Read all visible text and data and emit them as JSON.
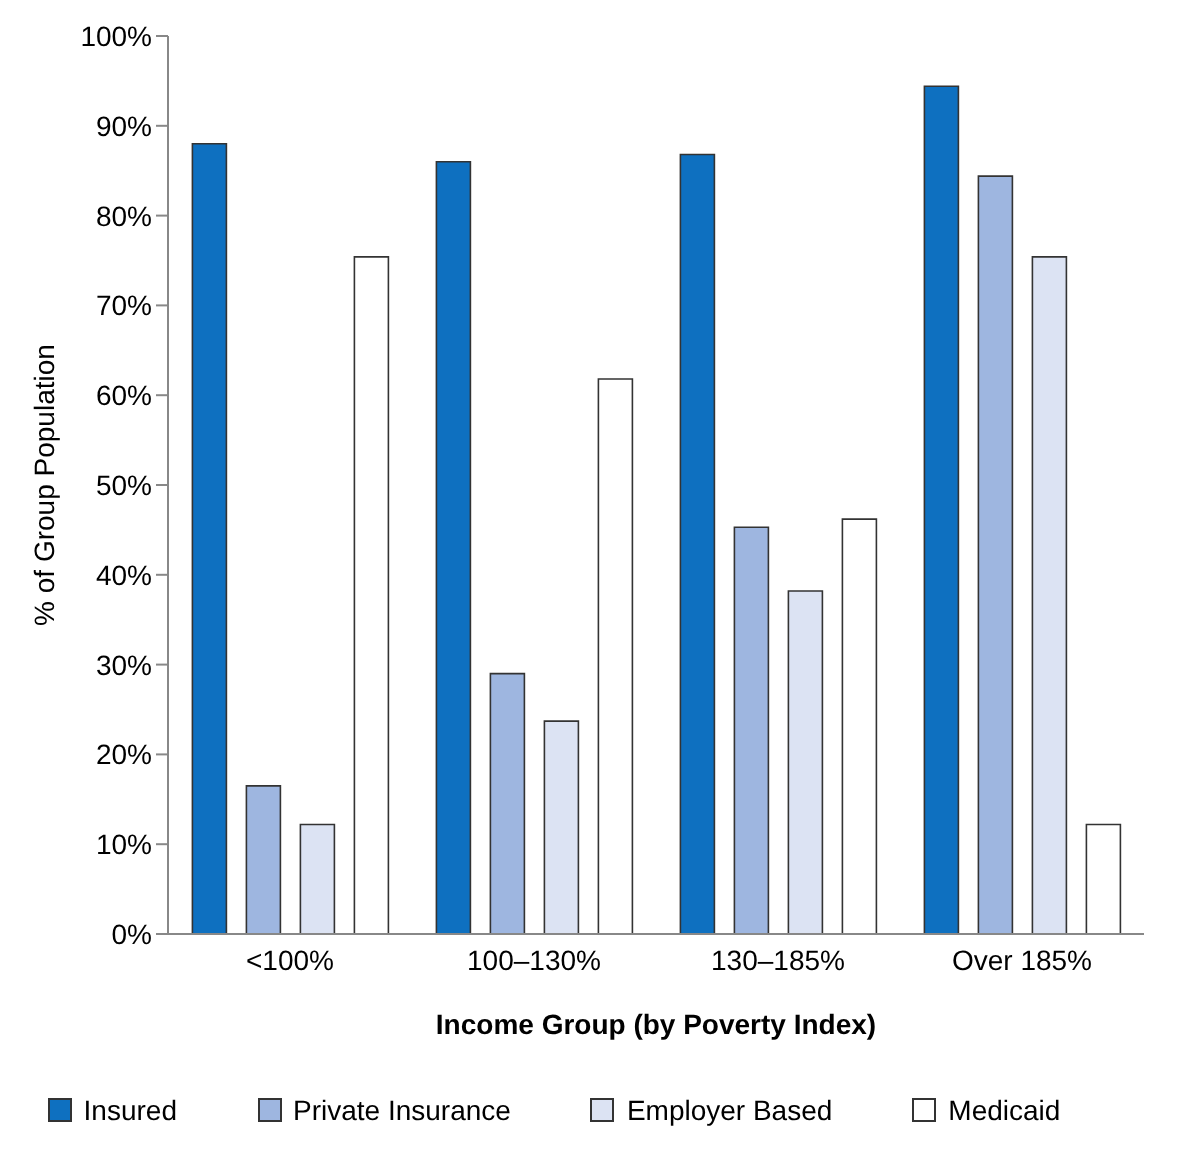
{
  "chart_data": {
    "type": "bar",
    "xlabel": "Income Group (by Poverty Index)",
    "ylabel": "% of Group Population",
    "categories": [
      "<100%",
      "100–130%",
      "130–185%",
      "Over 185%"
    ],
    "series": [
      {
        "name": "Insured",
        "color": "#0e70c0",
        "values": [
          88,
          86,
          86.8,
          94.4
        ]
      },
      {
        "name": "Private Insurance",
        "color": "#9eb6e0",
        "values": [
          16.5,
          29,
          45.3,
          84.4
        ]
      },
      {
        "name": "Employer Based",
        "color": "#dce3f3",
        "values": [
          12.2,
          23.7,
          38.2,
          75.4
        ]
      },
      {
        "name": "Medicaid",
        "color": "#ffffff",
        "values": [
          75.4,
          61.8,
          46.2,
          12.2
        ]
      }
    ],
    "ylim": [
      0,
      100
    ],
    "yticks": [
      {
        "value": 0,
        "label": "0%"
      },
      {
        "value": 10,
        "label": "10%"
      },
      {
        "value": 20,
        "label": "20%"
      },
      {
        "value": 30,
        "label": "30%"
      },
      {
        "value": 40,
        "label": "40%"
      },
      {
        "value": 50,
        "label": "50%"
      },
      {
        "value": 60,
        "label": "60%"
      },
      {
        "value": 70,
        "label": "70%"
      },
      {
        "value": 80,
        "label": "80%"
      },
      {
        "value": 90,
        "label": "90%"
      },
      {
        "value": 100,
        "label": "100%"
      }
    ],
    "grid": false,
    "legend": "bottom"
  }
}
